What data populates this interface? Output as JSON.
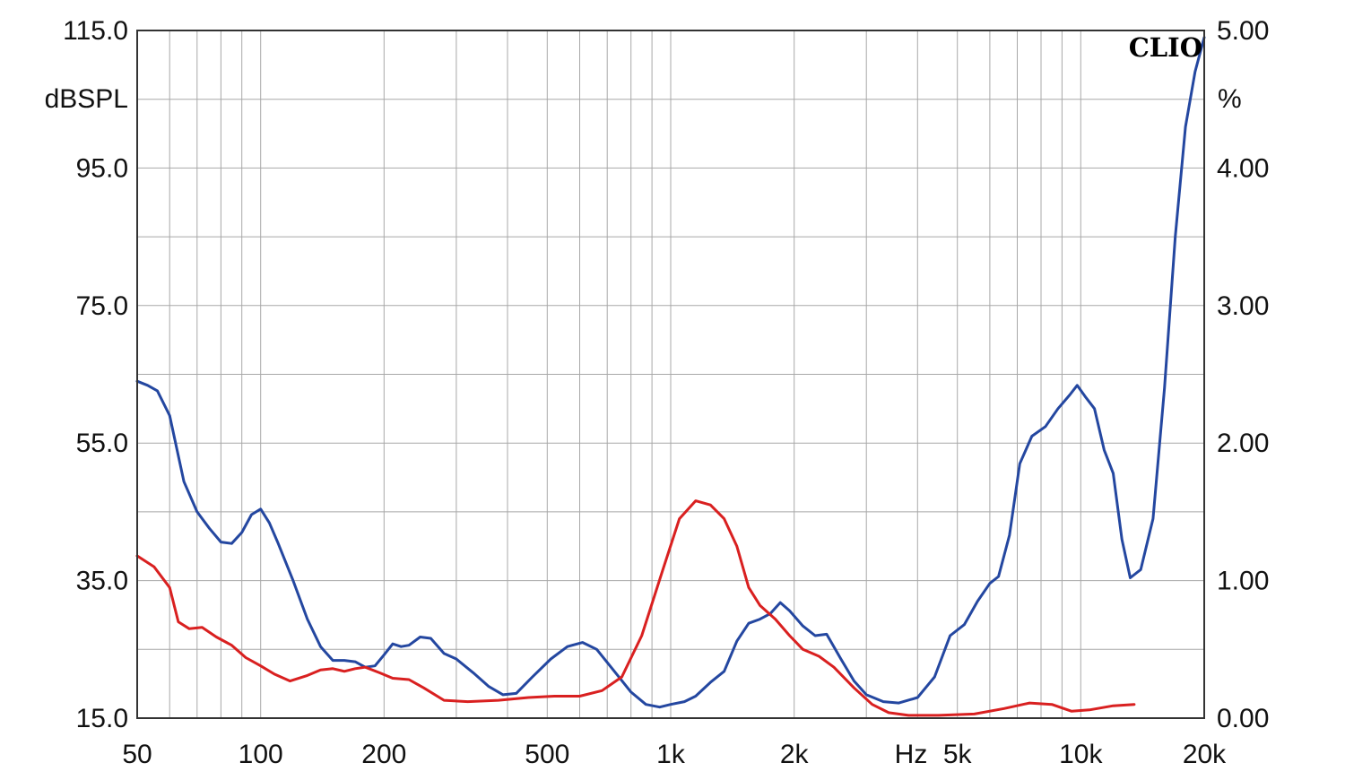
{
  "chart_data": {
    "type": "line",
    "brand": "CLIO",
    "y_left_unit": "dBSPL",
    "y_right_unit": "%",
    "x_unit": "Hz",
    "x_scale": "log",
    "xlim": [
      50,
      20000
    ],
    "ylim_left": [
      15,
      115
    ],
    "ylim_right": [
      0,
      5
    ],
    "grid": true,
    "x_ticks": [
      {
        "value": 50,
        "label": "50"
      },
      {
        "value": 100,
        "label": "100"
      },
      {
        "value": 200,
        "label": "200"
      },
      {
        "value": 500,
        "label": "500"
      },
      {
        "value": 1000,
        "label": "1k"
      },
      {
        "value": 2000,
        "label": "2k"
      },
      {
        "value": 5000,
        "label": "5k"
      },
      {
        "value": 10000,
        "label": "10k"
      },
      {
        "value": 20000,
        "label": "20k"
      }
    ],
    "y_left_ticks": [
      {
        "value": 115,
        "label": "115.0"
      },
      {
        "value": 95,
        "label": "95.0"
      },
      {
        "value": 75,
        "label": "75.0"
      },
      {
        "value": 55,
        "label": "55.0"
      },
      {
        "value": 35,
        "label": "35.0"
      },
      {
        "value": 15,
        "label": "15.0"
      }
    ],
    "y_right_ticks": [
      {
        "value": 5,
        "label": "5.00"
      },
      {
        "value": 4,
        "label": "4.00"
      },
      {
        "value": 3,
        "label": "3.00"
      },
      {
        "value": 2,
        "label": "2.00"
      },
      {
        "value": 1,
        "label": "1.00"
      },
      {
        "value": 0,
        "label": "0.00"
      }
    ],
    "series": [
      {
        "color": "#2447a0",
        "axis": "right",
        "points": [
          [
            50,
            2.45
          ],
          [
            53,
            2.42
          ],
          [
            56,
            2.38
          ],
          [
            60,
            2.2
          ],
          [
            65,
            1.72
          ],
          [
            70,
            1.5
          ],
          [
            75,
            1.38
          ],
          [
            80,
            1.28
          ],
          [
            85,
            1.27
          ],
          [
            90,
            1.35
          ],
          [
            95,
            1.48
          ],
          [
            100,
            1.52
          ],
          [
            105,
            1.42
          ],
          [
            110,
            1.28
          ],
          [
            120,
            1.0
          ],
          [
            130,
            0.72
          ],
          [
            140,
            0.52
          ],
          [
            150,
            0.42
          ],
          [
            160,
            0.42
          ],
          [
            170,
            0.41
          ],
          [
            180,
            0.37
          ],
          [
            190,
            0.38
          ],
          [
            200,
            0.46
          ],
          [
            210,
            0.54
          ],
          [
            220,
            0.52
          ],
          [
            230,
            0.53
          ],
          [
            245,
            0.59
          ],
          [
            260,
            0.58
          ],
          [
            280,
            0.47
          ],
          [
            300,
            0.43
          ],
          [
            330,
            0.33
          ],
          [
            360,
            0.23
          ],
          [
            390,
            0.17
          ],
          [
            420,
            0.18
          ],
          [
            460,
            0.3
          ],
          [
            510,
            0.43
          ],
          [
            560,
            0.52
          ],
          [
            610,
            0.55
          ],
          [
            660,
            0.5
          ],
          [
            720,
            0.36
          ],
          [
            800,
            0.19
          ],
          [
            870,
            0.1
          ],
          [
            940,
            0.08
          ],
          [
            1000,
            0.1
          ],
          [
            1080,
            0.12
          ],
          [
            1150,
            0.16
          ],
          [
            1250,
            0.26
          ],
          [
            1350,
            0.34
          ],
          [
            1450,
            0.56
          ],
          [
            1550,
            0.69
          ],
          [
            1650,
            0.72
          ],
          [
            1750,
            0.76
          ],
          [
            1850,
            0.84
          ],
          [
            1950,
            0.78
          ],
          [
            2100,
            0.67
          ],
          [
            2250,
            0.6
          ],
          [
            2400,
            0.61
          ],
          [
            2600,
            0.43
          ],
          [
            2800,
            0.27
          ],
          [
            3000,
            0.17
          ],
          [
            3300,
            0.12
          ],
          [
            3600,
            0.11
          ],
          [
            4000,
            0.15
          ],
          [
            4400,
            0.3
          ],
          [
            4800,
            0.6
          ],
          [
            5200,
            0.68
          ],
          [
            5600,
            0.85
          ],
          [
            6000,
            0.98
          ],
          [
            6300,
            1.03
          ],
          [
            6700,
            1.33
          ],
          [
            7100,
            1.85
          ],
          [
            7600,
            2.05
          ],
          [
            8200,
            2.12
          ],
          [
            8800,
            2.25
          ],
          [
            9400,
            2.35
          ],
          [
            9800,
            2.42
          ],
          [
            10300,
            2.33
          ],
          [
            10800,
            2.25
          ],
          [
            11400,
            1.95
          ],
          [
            12000,
            1.78
          ],
          [
            12600,
            1.3
          ],
          [
            13200,
            1.02
          ],
          [
            14000,
            1.08
          ],
          [
            15000,
            1.45
          ],
          [
            16000,
            2.4
          ],
          [
            17000,
            3.5
          ],
          [
            18000,
            4.3
          ],
          [
            19000,
            4.7
          ],
          [
            20000,
            4.95
          ]
        ]
      },
      {
        "color": "#d92020",
        "axis": "right",
        "points": [
          [
            50,
            1.18
          ],
          [
            55,
            1.1
          ],
          [
            60,
            0.95
          ],
          [
            63,
            0.7
          ],
          [
            67,
            0.65
          ],
          [
            72,
            0.66
          ],
          [
            78,
            0.59
          ],
          [
            85,
            0.53
          ],
          [
            92,
            0.44
          ],
          [
            100,
            0.38
          ],
          [
            108,
            0.32
          ],
          [
            118,
            0.27
          ],
          [
            130,
            0.31
          ],
          [
            140,
            0.35
          ],
          [
            150,
            0.36
          ],
          [
            160,
            0.34
          ],
          [
            170,
            0.36
          ],
          [
            180,
            0.37
          ],
          [
            195,
            0.33
          ],
          [
            210,
            0.29
          ],
          [
            230,
            0.28
          ],
          [
            250,
            0.22
          ],
          [
            280,
            0.13
          ],
          [
            320,
            0.12
          ],
          [
            380,
            0.13
          ],
          [
            450,
            0.15
          ],
          [
            520,
            0.16
          ],
          [
            600,
            0.16
          ],
          [
            680,
            0.2
          ],
          [
            760,
            0.3
          ],
          [
            850,
            0.6
          ],
          [
            950,
            1.05
          ],
          [
            1050,
            1.45
          ],
          [
            1150,
            1.58
          ],
          [
            1250,
            1.55
          ],
          [
            1350,
            1.45
          ],
          [
            1450,
            1.25
          ],
          [
            1550,
            0.95
          ],
          [
            1650,
            0.82
          ],
          [
            1800,
            0.72
          ],
          [
            1950,
            0.6
          ],
          [
            2100,
            0.5
          ],
          [
            2300,
            0.45
          ],
          [
            2500,
            0.37
          ],
          [
            2800,
            0.22
          ],
          [
            3100,
            0.1
          ],
          [
            3400,
            0.04
          ],
          [
            3800,
            0.02
          ],
          [
            4500,
            0.02
          ],
          [
            5500,
            0.03
          ],
          [
            6500,
            0.07
          ],
          [
            7500,
            0.11
          ],
          [
            8500,
            0.1
          ],
          [
            9500,
            0.05
          ],
          [
            10500,
            0.06
          ],
          [
            12000,
            0.09
          ],
          [
            13500,
            0.1
          ]
        ]
      }
    ]
  }
}
